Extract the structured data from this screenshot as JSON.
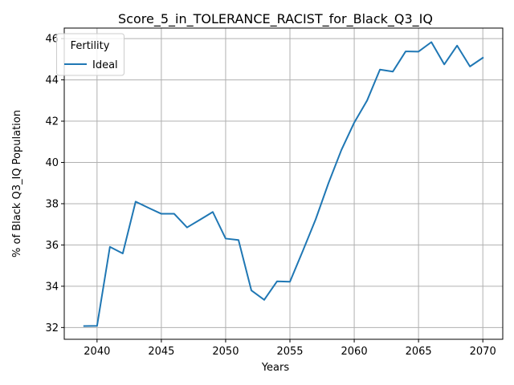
{
  "chart_data": {
    "type": "line",
    "title": "Score_5_in_TOLERANCE_RACIST_for_Black_Q3_IQ",
    "xlabel": "Years",
    "ylabel": "% of Black Q3_IQ Population",
    "xlim": [
      2037.45,
      2071.55
    ],
    "ylim": [
      31.43,
      46.51
    ],
    "xticks": [
      2040,
      2045,
      2050,
      2055,
      2060,
      2065,
      2070
    ],
    "yticks": [
      32,
      34,
      36,
      38,
      40,
      42,
      44,
      46
    ],
    "grid": true,
    "legend": {
      "title": "Fertility",
      "placement": "top-left"
    },
    "colors": {
      "series": "#1f77b4",
      "grid": "#b0b0b0",
      "axis": "#000000"
    },
    "series": [
      {
        "name": "Ideal",
        "x": [
          2039,
          2040,
          2041,
          2042,
          2043,
          2044,
          2045,
          2046,
          2047,
          2048,
          2049,
          2050,
          2051,
          2052,
          2053,
          2054,
          2055,
          2056,
          2057,
          2058,
          2059,
          2060,
          2061,
          2062,
          2063,
          2064,
          2065,
          2066,
          2067,
          2068,
          2069,
          2070
        ],
        "y": [
          32.07,
          32.08,
          35.91,
          35.59,
          38.1,
          37.8,
          37.51,
          37.51,
          36.85,
          37.22,
          37.6,
          36.31,
          36.24,
          33.8,
          33.34,
          34.24,
          34.22,
          35.71,
          37.24,
          39.0,
          40.6,
          41.93,
          43.0,
          44.5,
          44.4,
          45.38,
          45.37,
          45.83,
          44.75,
          45.66,
          44.65,
          45.07
        ]
      }
    ]
  }
}
